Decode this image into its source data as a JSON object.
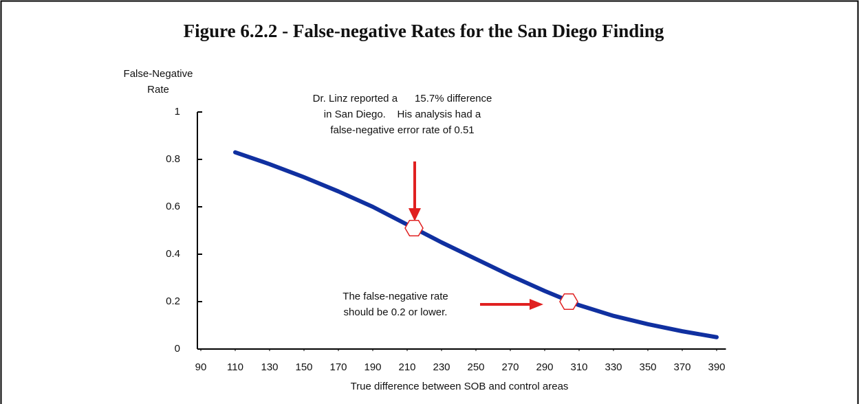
{
  "chart_data": {
    "type": "line",
    "title": "Figure 6.2.2 - False-negative Rates for the San Diego Finding",
    "y_label": [
      "False-Negative",
      "Rate"
    ],
    "x_label": "True difference between SOB and control areas",
    "x": [
      110,
      130,
      150,
      170,
      190,
      210,
      230,
      250,
      270,
      290,
      310,
      330,
      350,
      370,
      390
    ],
    "values": [
      0.83,
      0.78,
      0.725,
      0.665,
      0.6,
      0.525,
      0.45,
      0.38,
      0.31,
      0.245,
      0.185,
      0.14,
      0.105,
      0.075,
      0.05
    ],
    "color": "#1030a0",
    "xlim": [
      88,
      393
    ],
    "ylim": [
      0,
      1
    ],
    "xticks": [
      90,
      110,
      130,
      150,
      170,
      190,
      210,
      230,
      250,
      270,
      290,
      310,
      330,
      350,
      370,
      390
    ],
    "yticks": [
      0,
      0.2,
      0.4,
      0.6,
      0.8,
      1
    ],
    "markers": [
      {
        "x": 214,
        "y": 0.51
      },
      {
        "x": 304,
        "y": 0.2
      }
    ],
    "marker_color": "#e02020",
    "annotations": [
      [
        "Dr. Linz reported a      15.7% difference",
        "in San Diego.    His analysis had a",
        "false-negative error rate of 0.51"
      ],
      [
        "The false-negative rate",
        "should be 0.2 or lower."
      ]
    ]
  }
}
